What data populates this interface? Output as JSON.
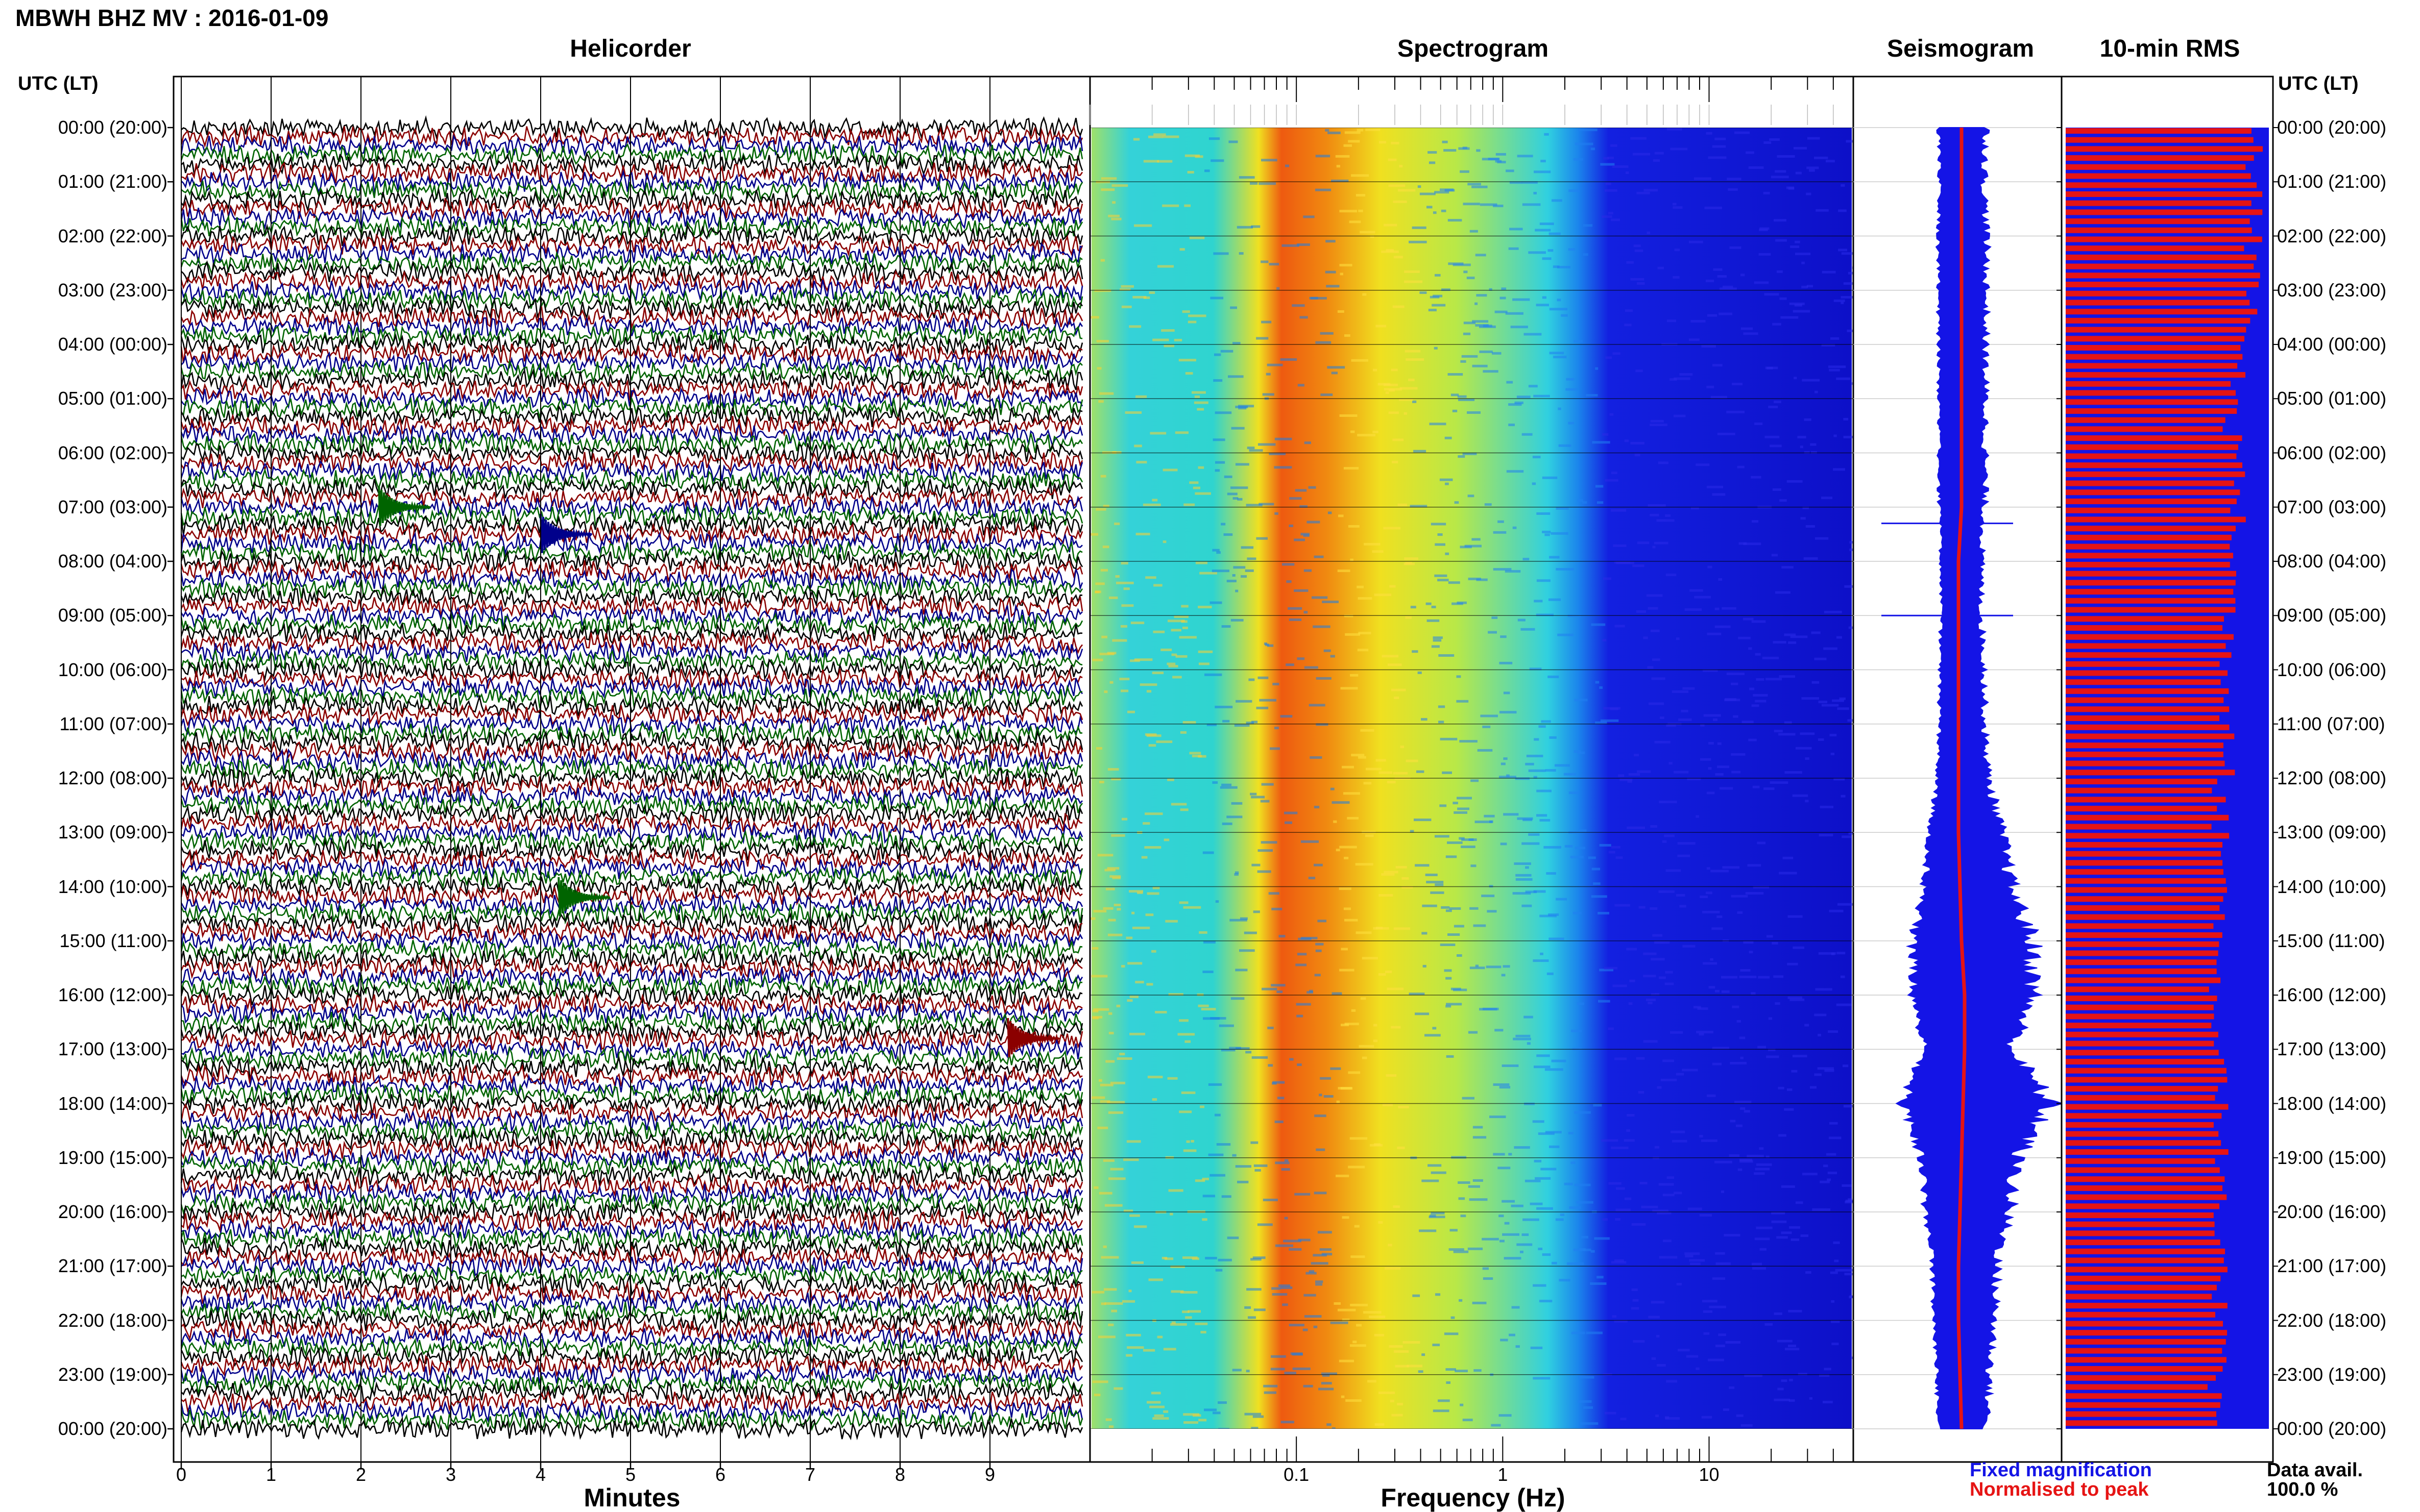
{
  "header": {
    "station_title": "MBWH BHZ MV : 2016-01-09"
  },
  "panels": {
    "helicorder_title": "Helicorder",
    "spectrogram_title": "Spectrogram",
    "seismogram_title": "Seismogram",
    "rms_title": "10-min RMS"
  },
  "axes": {
    "left_header": "UTC (LT)",
    "right_header": "UTC (LT)",
    "minutes_label": "Minutes",
    "frequency_label": "Frequency (Hz)",
    "minute_ticks": [
      "0",
      "1",
      "2",
      "3",
      "4",
      "5",
      "6",
      "7",
      "8",
      "9"
    ],
    "freq_ticks": [
      "0.1",
      "1",
      "10"
    ]
  },
  "time_labels": [
    "00:00 (20:00)",
    "01:00 (21:00)",
    "02:00 (22:00)",
    "03:00 (23:00)",
    "04:00 (00:00)",
    "05:00 (01:00)",
    "06:00 (02:00)",
    "07:00 (03:00)",
    "08:00 (04:00)",
    "09:00 (05:00)",
    "10:00 (06:00)",
    "11:00 (07:00)",
    "12:00 (08:00)",
    "13:00 (09:00)",
    "14:00 (10:00)",
    "15:00 (11:00)",
    "16:00 (12:00)",
    "17:00 (13:00)",
    "18:00 (14:00)",
    "19:00 (15:00)",
    "20:00 (16:00)",
    "21:00 (17:00)",
    "22:00 (18:00)",
    "23:00 (19:00)",
    "00:00 (20:00)"
  ],
  "legend": {
    "fixed": "Fixed magnification",
    "normalised": "Normalised to peak"
  },
  "data_availability": {
    "label": "Data avail.",
    "value": "100.0 %"
  },
  "colors": {
    "trace_colors": [
      "#000000",
      "#8b0000",
      "#00008b",
      "#006400"
    ],
    "seismogram_blue": "#1414e6",
    "seismogram_red": "#e61414",
    "rms_red": "#e61414",
    "rms_blue": "#1414e6"
  },
  "chart_data": [
    {
      "type": "line",
      "name": "Helicorder",
      "xlabel": "Minutes",
      "xlim": [
        0,
        10
      ],
      "ylabel": "UTC (LT)",
      "rows_per_hour": 6,
      "hours": 24,
      "notes_events": [
        {
          "hour": 7.0,
          "minute": 2.2,
          "trace_color": "green"
        },
        {
          "hour": 7.5,
          "minute": 4.0,
          "trace_color": "blue"
        },
        {
          "hour": 14.2,
          "minute": 4.2,
          "trace_color": "green"
        },
        {
          "hour": 16.8,
          "minute": 9.2,
          "trace_color": "red"
        }
      ]
    },
    {
      "type": "heatmap",
      "name": "Spectrogram",
      "xlabel": "Frequency (Hz)",
      "xscale": "log",
      "xlim": [
        0.01,
        50
      ],
      "peak_band_hz": [
        0.15,
        0.3
      ]
    },
    {
      "type": "line",
      "name": "Seismogram",
      "hours": [
        0,
        1,
        2,
        3,
        4,
        5,
        6,
        7,
        8,
        9,
        10,
        11,
        12,
        13,
        14,
        15,
        16,
        17,
        18,
        19,
        20,
        21,
        22,
        23,
        24
      ],
      "fixed_amplitude": [
        0.3,
        0.28,
        0.3,
        0.3,
        0.29,
        0.29,
        0.29,
        0.28,
        0.25,
        0.25,
        0.28,
        0.28,
        0.32,
        0.45,
        0.55,
        0.75,
        0.75,
        0.55,
        0.92,
        0.6,
        0.52,
        0.4,
        0.38,
        0.33,
        0.3
      ],
      "normalised_level": [
        0.04,
        0.04,
        0.04,
        0.04,
        0.04,
        0.04,
        0.04,
        0.04,
        0.02,
        0.02,
        0.02,
        0.02,
        0.02,
        0.02,
        0.03,
        0.04,
        0.06,
        0.06,
        0.05,
        0.04,
        0.03,
        0.02,
        0.02,
        0.03,
        0.04
      ]
    },
    {
      "type": "bar",
      "name": "10-min RMS",
      "hours": [
        0,
        1,
        2,
        3,
        4,
        5,
        6,
        7,
        8,
        9,
        10,
        11,
        12,
        13,
        14,
        15,
        16,
        17,
        18,
        19,
        20,
        21,
        22,
        23
      ],
      "rms": [
        0.93,
        0.92,
        0.92,
        0.91,
        0.85,
        0.82,
        0.85,
        0.84,
        0.82,
        0.8,
        0.8,
        0.82,
        0.76,
        0.78,
        0.77,
        0.74,
        0.75,
        0.78,
        0.76,
        0.75,
        0.74,
        0.76,
        0.8,
        0.74
      ]
    }
  ]
}
